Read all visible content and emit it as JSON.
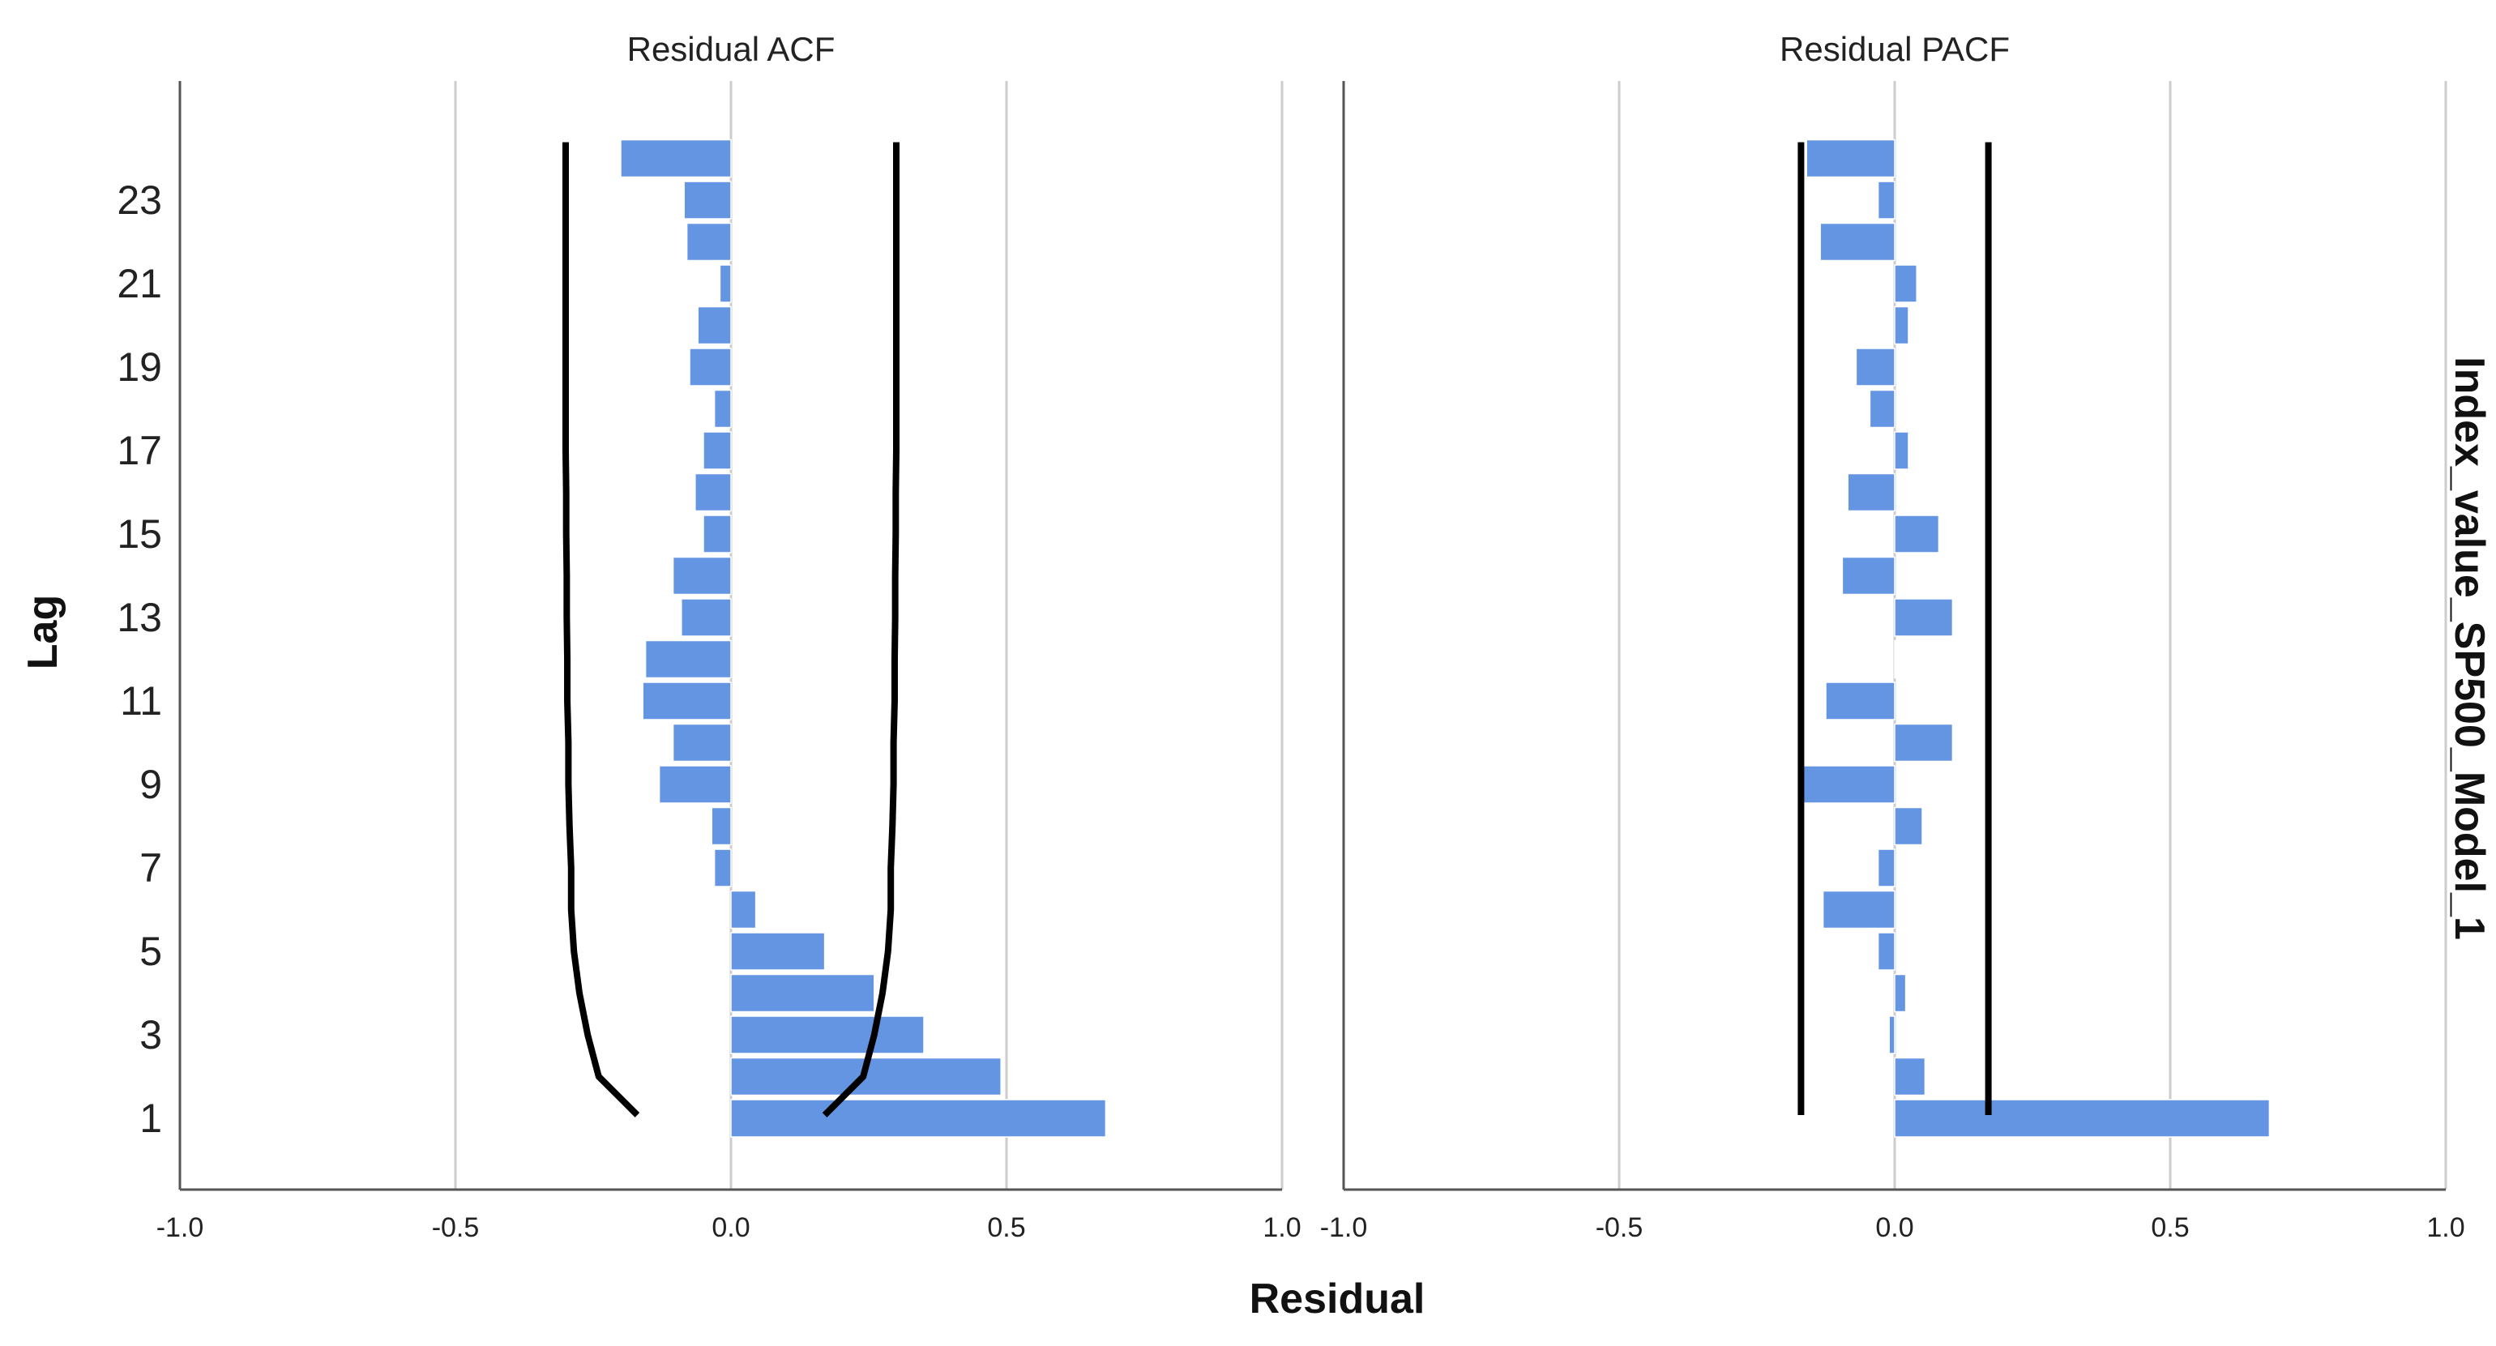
{
  "chart_data": {
    "type": "bar",
    "orientation": "horizontal",
    "ylabel": "Lag",
    "xlabel": "Residual",
    "side_label": "Index_value_SP500_Model_1",
    "x_ticks": [
      "-1.0",
      "-0.5",
      "0.0",
      "0.5",
      "1.0"
    ],
    "y_ticks": [
      "1",
      "3",
      "5",
      "7",
      "9",
      "11",
      "13",
      "15",
      "17",
      "19",
      "21",
      "23"
    ],
    "xlim": [
      -1.0,
      1.0
    ],
    "lags": [
      1,
      2,
      3,
      4,
      5,
      6,
      7,
      8,
      9,
      10,
      11,
      12,
      13,
      14,
      15,
      16,
      17,
      18,
      19,
      20,
      21,
      22,
      23,
      24
    ],
    "panels": [
      {
        "title": "Residual ACF",
        "values": [
          0.68,
          0.49,
          0.35,
          0.26,
          0.17,
          0.045,
          -0.03,
          -0.035,
          -0.13,
          -0.105,
          -0.16,
          -0.155,
          -0.09,
          -0.105,
          -0.05,
          -0.065,
          -0.05,
          -0.03,
          -0.075,
          -0.06,
          -0.02,
          -0.08,
          -0.085,
          -0.2
        ],
        "confidence_upper": [
          0.17,
          0.24,
          0.26,
          0.275,
          0.285,
          0.29,
          0.29,
          0.293,
          0.295,
          0.295,
          0.297,
          0.297,
          0.298,
          0.298,
          0.299,
          0.299,
          0.3,
          0.3,
          0.3,
          0.3,
          0.3,
          0.3,
          0.3,
          0.3
        ]
      },
      {
        "title": "Residual PACF",
        "values": [
          0.68,
          0.055,
          -0.01,
          0.02,
          -0.03,
          -0.13,
          -0.03,
          0.05,
          -0.17,
          0.105,
          -0.125,
          0.0,
          0.105,
          -0.095,
          0.08,
          -0.085,
          0.025,
          -0.045,
          -0.07,
          0.025,
          0.04,
          -0.135,
          -0.03,
          -0.16
        ],
        "confidence_upper": [
          0.17,
          0.17,
          0.17,
          0.17,
          0.17,
          0.17,
          0.17,
          0.17,
          0.17,
          0.17,
          0.17,
          0.17,
          0.17,
          0.17,
          0.17,
          0.17,
          0.17,
          0.17,
          0.17,
          0.17,
          0.17,
          0.17,
          0.17,
          0.17
        ]
      }
    ],
    "colors": {
      "bar": "#6495E3",
      "bar_outline": "#ffffff",
      "confidence": "#000000",
      "grid": "#cccccc",
      "axis": "#555555"
    }
  }
}
